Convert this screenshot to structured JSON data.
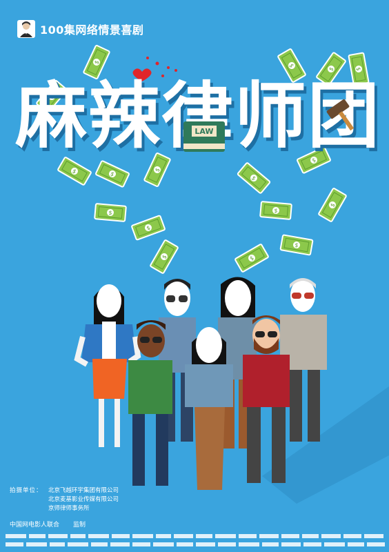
{
  "badge": {
    "text": "100集网络情景喜剧"
  },
  "title": {
    "text": "麻辣律师团",
    "book_label": "LAW"
  },
  "credits": {
    "label": "拍摄单位：",
    "companies": [
      "北京飞越环宇集团有限公司",
      "北京麦基影业传媒有限公司",
      "京师律师事务所"
    ]
  },
  "supervision": {
    "org": "中国网电影人联合",
    "action": "监制"
  },
  "colors": {
    "background": "#3aa4de",
    "title_shadow": "#1e6fa3",
    "money": "#7ec24a"
  }
}
